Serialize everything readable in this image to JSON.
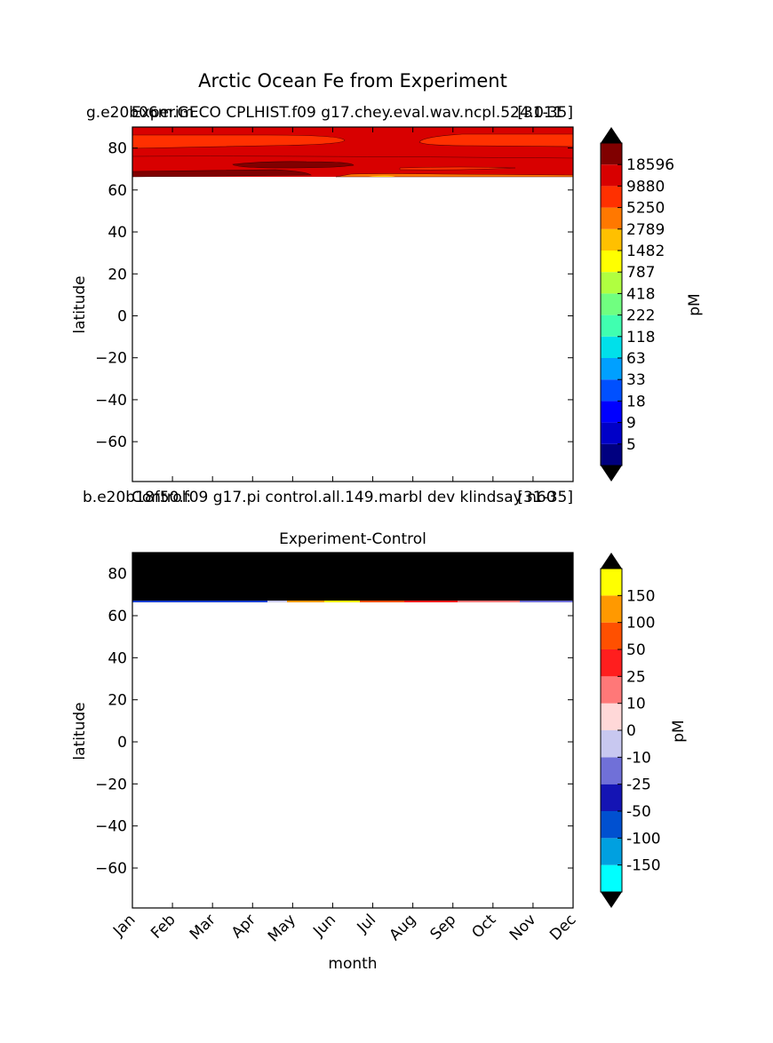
{
  "figure": {
    "suptitle": "Arctic Ocean Fe from Experiment"
  },
  "top_panel": {
    "title_center": "Experim.",
    "title_left": "g.e20b06m.GECO CPLHIST.f09 g17.chey.eval.wav.ncpl.524.011",
    "title_right": "[31-35]",
    "ylabel": "latitude",
    "yticks": [
      "80",
      "60",
      "40",
      "20",
      "0",
      "−20",
      "−40",
      "−60"
    ]
  },
  "bottom_panel": {
    "caption_center": "Control:",
    "caption_left": "b.e20b18f50.f09 g17.pi control.all.149.marbl dev klindsay n60",
    "caption_right": "[31-35]",
    "title": "Experiment-Control",
    "ylabel": "latitude",
    "xlabel": "month",
    "yticks": [
      "80",
      "60",
      "40",
      "20",
      "0",
      "−20",
      "−40",
      "−60"
    ],
    "xticks": [
      "Jan",
      "Feb",
      "Mar",
      "Apr",
      "May",
      "Jun",
      "Jul",
      "Aug",
      "Sep",
      "Oct",
      "Nov",
      "Dec"
    ]
  },
  "colorbar_top": {
    "label": "pM",
    "ticks": [
      "18596",
      "9880",
      "5250",
      "2789",
      "1482",
      "787",
      "418",
      "222",
      "118",
      "63",
      "33",
      "18",
      "9",
      "5"
    ],
    "colors": [
      "#000080",
      "#0000c8",
      "#0000ff",
      "#0050ff",
      "#00a0ff",
      "#00e0ea",
      "#40ffb0",
      "#70ff80",
      "#b0ff40",
      "#ffff00",
      "#ffc000",
      "#ff7800",
      "#ff3000",
      "#d80000",
      "#800000"
    ]
  },
  "colorbar_bottom": {
    "label": "pM",
    "ticks": [
      "150",
      "100",
      "50",
      "25",
      "10",
      "0",
      "-10",
      "-25",
      "-50",
      "-100",
      "-150"
    ],
    "colors": [
      "#00ffff",
      "#00a0e0",
      "#0050d0",
      "#1414b4",
      "#7070d8",
      "#c8c8f0",
      "#ffd8d8",
      "#ff7878",
      "#ff1e1e",
      "#ff5000",
      "#ff9900",
      "#ffff00"
    ]
  },
  "chart_data": [
    {
      "type": "heatmap",
      "title": "Experim.",
      "x": [
        "Jan",
        "Feb",
        "Mar",
        "Apr",
        "May",
        "Jun",
        "Jul",
        "Aug",
        "Sep",
        "Oct",
        "Nov",
        "Dec"
      ],
      "y": [
        89,
        80,
        70,
        66
      ],
      "values_note_levels": [
        5,
        9,
        18,
        33,
        63,
        118,
        222,
        418,
        787,
        1482,
        2789,
        5250,
        9880,
        18596
      ],
      "values": [
        [
          9880,
          9880,
          9880,
          9880,
          9880,
          9880,
          9880,
          9880,
          9880,
          9880,
          9880,
          9880
        ],
        [
          5250,
          5250,
          5250,
          5250,
          5250,
          9880,
          9880,
          9880,
          5250,
          5250,
          5250,
          5250
        ],
        [
          9880,
          9880,
          9880,
          9880,
          18596,
          18596,
          9880,
          9880,
          9880,
          9880,
          9880,
          9880
        ],
        [
          18596,
          18596,
          18596,
          18596,
          18596,
          9880,
          5250,
          2789,
          9880,
          9880,
          9880,
          9880
        ]
      ],
      "ylabel": "latitude",
      "ylim": [
        -79,
        90
      ],
      "colorbar_label": "pM"
    },
    {
      "type": "heatmap",
      "title": "Experiment-Control",
      "x": [
        "Jan",
        "Feb",
        "Mar",
        "Apr",
        "May",
        "Jun",
        "Jul",
        "Aug",
        "Sep",
        "Oct",
        "Nov",
        "Dec"
      ],
      "y": [
        89,
        80,
        70,
        66
      ],
      "values": [
        [
          200,
          200,
          200,
          200,
          200,
          200,
          200,
          200,
          200,
          200,
          200,
          200
        ],
        [
          200,
          200,
          200,
          200,
          200,
          200,
          200,
          200,
          200,
          200,
          200,
          200
        ],
        [
          200,
          200,
          200,
          200,
          200,
          200,
          200,
          200,
          200,
          200,
          200,
          200
        ],
        [
          -80,
          -80,
          -80,
          -60,
          0,
          40,
          150,
          60,
          30,
          5,
          -5,
          -20
        ]
      ],
      "xlabel": "month",
      "ylabel": "latitude",
      "ylim": [
        -79,
        90
      ],
      "colorbar_label": "pM"
    }
  ]
}
